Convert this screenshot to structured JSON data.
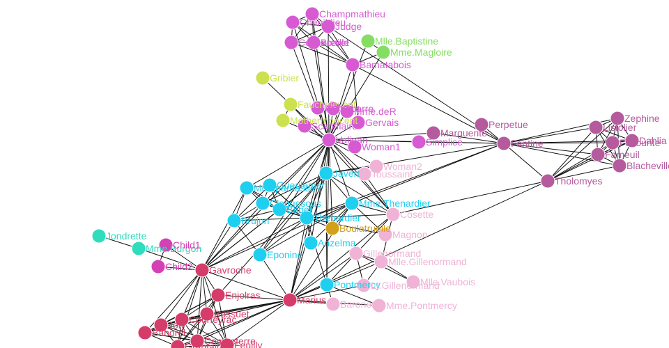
{
  "nodes": [
    {
      "label": "Champmathieu"
    },
    {
      "label": "Chenildieu"
    },
    {
      "label": "Judge"
    },
    {
      "label": "Cochepaille"
    },
    {
      "label": "Brevet"
    },
    {
      "label": "Bamatabois"
    },
    {
      "label": "Mlle.Baptistine"
    },
    {
      "label": "Mme.Magloire"
    },
    {
      "label": "Gribier"
    },
    {
      "label": "Fauchelevent"
    },
    {
      "label": "MotherInnocent"
    },
    {
      "label": "Isabeau"
    },
    {
      "label": "Labarre"
    },
    {
      "label": "Mme.deR"
    },
    {
      "label": "Gervais"
    },
    {
      "label": "Scaufflaire"
    },
    {
      "label": "Valjean"
    },
    {
      "label": "Woman1"
    },
    {
      "label": "Simplice"
    },
    {
      "label": "Marguerite"
    },
    {
      "label": "Perpetue"
    },
    {
      "label": "Fantine"
    },
    {
      "label": "Tholomyes"
    },
    {
      "label": "Zephine"
    },
    {
      "label": "Listolier"
    },
    {
      "label": "Dahlia"
    },
    {
      "label": "Favourite"
    },
    {
      "label": "Fameuil"
    },
    {
      "label": "Blacheville"
    },
    {
      "label": "Javert"
    },
    {
      "label": "Woman2"
    },
    {
      "label": "Toussaint"
    },
    {
      "label": "Montparnasse"
    },
    {
      "label": "Gueulemer"
    },
    {
      "label": "Claquesous"
    },
    {
      "label": "Babet"
    },
    {
      "label": "Thenardier"
    },
    {
      "label": "Mme.Thenardier"
    },
    {
      "label": "Brujon"
    },
    {
      "label": "Eponine"
    },
    {
      "label": "Anzelma"
    },
    {
      "label": "Pontmercy"
    },
    {
      "label": "Boulatruelle"
    },
    {
      "label": "Cosette"
    },
    {
      "label": "Magnon"
    },
    {
      "label": "Gillenormand"
    },
    {
      "label": "Mlle.Gillenormand"
    },
    {
      "label": "Mlle.Vaubois"
    },
    {
      "label": "Lt.Gillenormand"
    },
    {
      "label": "Baroness"
    },
    {
      "label": "Mme.Pontmercy"
    },
    {
      "label": "Jondrette"
    },
    {
      "label": "Mme.Burgon"
    },
    {
      "label": "Child1"
    },
    {
      "label": "Child2"
    },
    {
      "label": "Gavroche"
    },
    {
      "label": "Enjolras"
    },
    {
      "label": "Marius"
    },
    {
      "label": "Bossuet"
    },
    {
      "label": "Courfeyrac"
    },
    {
      "label": "Joly"
    },
    {
      "label": "Bahorel"
    },
    {
      "label": "Combeferre"
    },
    {
      "label": "Feuilly"
    },
    {
      "label": "Grantaire"
    }
  ]
}
